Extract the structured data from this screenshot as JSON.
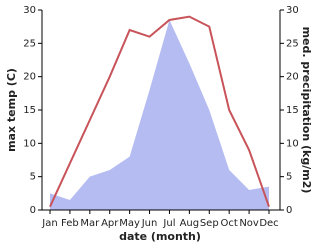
{
  "chart_data": {
    "type": "line",
    "x_label": "date (month)",
    "y_label": "max temp (C)",
    "y2_label": "med. precipitation (kg/m2)",
    "categories": [
      "Jan",
      "Feb",
      "Mar",
      "Apr",
      "May",
      "Jun",
      "Jul",
      "Aug",
      "Sep",
      "Oct",
      "Nov",
      "Dec"
    ],
    "series": [
      {
        "name": "max temp",
        "type": "line",
        "axis": "y",
        "color": "#c8545a",
        "values": [
          0.5,
          7,
          13.5,
          20,
          27,
          26,
          28.5,
          29,
          27.5,
          15,
          9,
          0.5
        ]
      },
      {
        "name": "med. precipitation",
        "type": "area",
        "axis": "y2",
        "color": "#b4bcf2",
        "values": [
          2.5,
          1.5,
          5,
          6,
          8,
          18,
          28.5,
          22,
          15,
          6,
          3,
          3.5
        ]
      }
    ],
    "ylim": [
      0,
      30
    ],
    "yticks": [
      0,
      5,
      10,
      15,
      20,
      25,
      30
    ],
    "y2lim": [
      0,
      30
    ],
    "y2ticks": [
      0,
      5,
      10,
      15,
      20,
      25,
      30
    ]
  }
}
